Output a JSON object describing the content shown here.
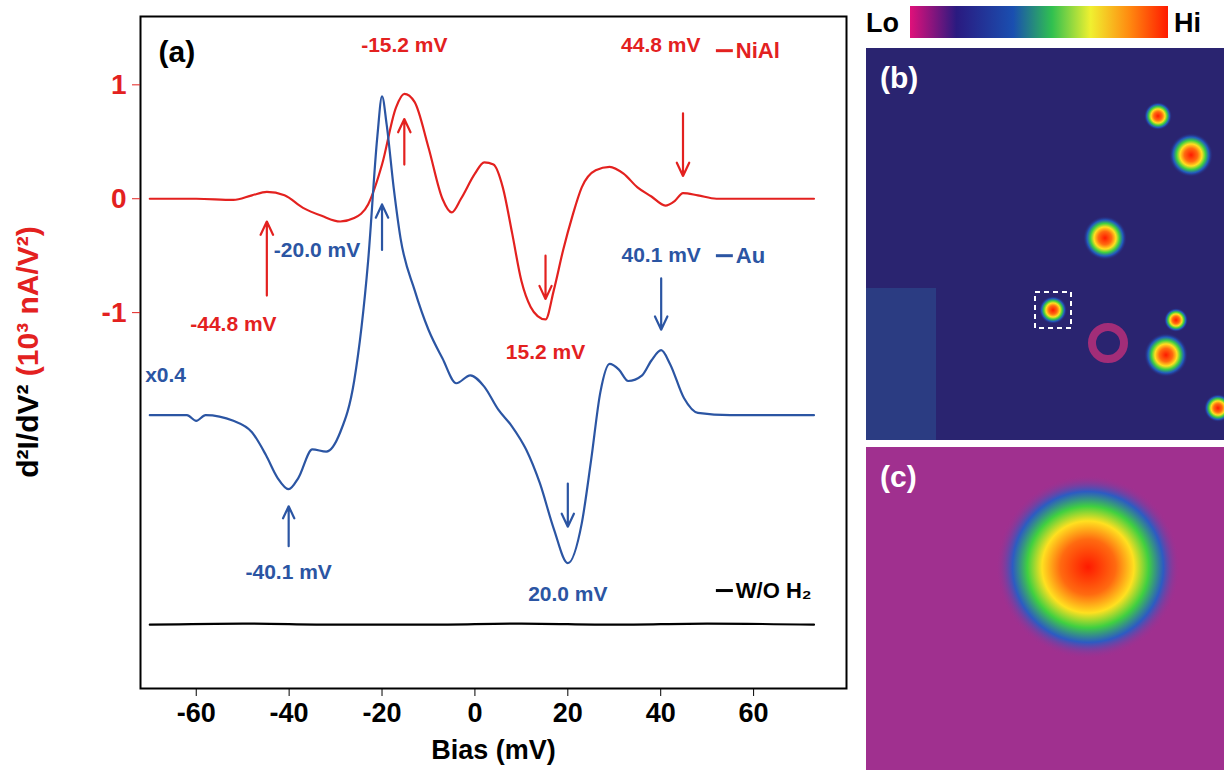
{
  "chart_data": {
    "type": "line",
    "panel_label": "(a)",
    "xlabel": "Bias (mV)",
    "ylabel": "d²I/dV² (10³ nA/V²)",
    "xlim": [
      -72,
      80
    ],
    "xticks": [
      -60,
      -40,
      -20,
      0,
      20,
      40,
      60
    ],
    "ylim": [
      -4.3,
      1.6
    ],
    "yticks": [
      -1,
      0,
      1
    ],
    "legend": "right",
    "series": [
      {
        "name": "NiAl",
        "color": "#e3211f",
        "x": [
          -70,
          -60,
          -52,
          -48,
          -44.8,
          -41,
          -37,
          -33,
          -29,
          -26,
          -23,
          -20,
          -17,
          -15.2,
          -13,
          -10,
          -7,
          -5,
          -3,
          0,
          2,
          4,
          6,
          8,
          10,
          12,
          13.5,
          15.2,
          17,
          19,
          21,
          23,
          26,
          29,
          32,
          35,
          38,
          41,
          43,
          44.8,
          48,
          52,
          60,
          73
        ],
        "values": [
          0,
          0,
          -0.01,
          0.03,
          0.06,
          0.03,
          -0.08,
          -0.15,
          -0.2,
          -0.17,
          -0.05,
          0.3,
          0.8,
          0.92,
          0.85,
          0.45,
          0,
          -0.12,
          0,
          0.22,
          0.32,
          0.3,
          0.1,
          -0.3,
          -0.72,
          -0.95,
          -1.03,
          -1.06,
          -0.8,
          -0.45,
          -0.15,
          0.1,
          0.25,
          0.28,
          0.22,
          0.1,
          0.02,
          -0.06,
          -0.02,
          0.05,
          0.03,
          0,
          0,
          0
        ]
      },
      {
        "name": "Au",
        "color": "#2b55a3",
        "x": [
          -70,
          -62,
          -60,
          -58,
          -52,
          -48,
          -45,
          -42.5,
          -40.1,
          -38,
          -35,
          -32,
          -29,
          -26,
          -23,
          -21,
          -20,
          -19,
          -17.5,
          -16,
          -13,
          -10,
          -7,
          -4,
          -1,
          2,
          5,
          8,
          11,
          14,
          17,
          20,
          23,
          25,
          27,
          29,
          31,
          33,
          36,
          38,
          40.1,
          42,
          45,
          48,
          55,
          73
        ],
        "values": [
          -1.9,
          -1.9,
          -1.95,
          -1.9,
          -1.95,
          -2.05,
          -2.25,
          -2.45,
          -2.55,
          -2.45,
          -2.2,
          -2.22,
          -2.05,
          -1.6,
          -0.55,
          0.55,
          0.9,
          0.65,
          0.1,
          -0.35,
          -0.8,
          -1.15,
          -1.4,
          -1.62,
          -1.55,
          -1.65,
          -1.85,
          -2.0,
          -2.2,
          -2.5,
          -2.9,
          -3.2,
          -2.85,
          -2.3,
          -1.7,
          -1.45,
          -1.5,
          -1.6,
          -1.55,
          -1.42,
          -1.33,
          -1.45,
          -1.75,
          -1.88,
          -1.9,
          -1.9
        ]
      },
      {
        "name": "W/O H₂",
        "color": "#000000",
        "x": [
          -70,
          -50,
          -30,
          -10,
          10,
          30,
          50,
          73
        ],
        "values": [
          -3.74,
          -3.73,
          -3.74,
          -3.74,
          -3.73,
          -3.74,
          -3.73,
          -3.74
        ]
      }
    ],
    "annotations": [
      {
        "text": "-15.2 mV",
        "color": "#e3211f",
        "x": -15.2,
        "arrow": [
          0.3,
          0.7
        ],
        "label_x": -15.2,
        "label_y": 1.35
      },
      {
        "text": "44.8 mV",
        "color": "#e3211f",
        "x": 44.8,
        "arrow": [
          0.75,
          0.2
        ],
        "label_x": 40,
        "label_y": 1.35
      },
      {
        "text": "-44.8 mV",
        "color": "#e3211f",
        "x": -44.8,
        "arrow": [
          -0.85,
          -0.2
        ],
        "label_x": -52,
        "label_y": -1.1
      },
      {
        "text": "15.2 mV",
        "color": "#e3211f",
        "x": 15.2,
        "arrow": [
          -0.5,
          -0.88
        ],
        "label_x": 15.2,
        "label_y": -1.35
      },
      {
        "text": "-20.0 mV",
        "color": "#2b55a3",
        "x": -20,
        "arrow": [
          -0.45,
          -0.05
        ],
        "label_x": -34,
        "label_y": -0.45
      },
      {
        "text": "40.1 mV",
        "color": "#2b55a3",
        "x": 40.1,
        "arrow": [
          -0.7,
          -1.15
        ],
        "label_x": 40.1,
        "label_y": -0.5
      },
      {
        "text": "-40.1 mV",
        "color": "#2b55a3",
        "x": -40.1,
        "arrow": [
          -3.05,
          -2.7
        ],
        "label_x": -40.1,
        "label_y": -3.28
      },
      {
        "text": "20.0 mV",
        "color": "#2b55a3",
        "x": 20,
        "arrow": [
          -2.5,
          -2.88
        ],
        "label_x": 20,
        "label_y": -3.47
      },
      {
        "text": "x0.4",
        "color": "#2b55a3",
        "label_x": -71,
        "label_y": -1.55
      }
    ]
  },
  "image_panels": {
    "colorbar": {
      "low": "Lo",
      "high": "Hi"
    },
    "panels": [
      {
        "label": "(b)"
      },
      {
        "label": "(c)"
      }
    ]
  }
}
